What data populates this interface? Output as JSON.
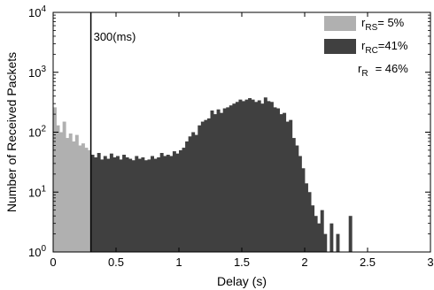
{
  "chart_data": {
    "type": "bar",
    "xlabel": "Delay (s)",
    "ylabel": "Number of Received Packets",
    "xlim": [
      0,
      3
    ],
    "ylim": [
      1,
      10000
    ],
    "yscale": "log",
    "grid": false,
    "legend_position": "top-right",
    "x_ticks": [
      "0",
      "0.5",
      "1",
      "1.5",
      "2",
      "2.5",
      "3"
    ],
    "y_tick_base": "10",
    "y_tick_exponents": [
      "0",
      "1",
      "2",
      "3",
      "4"
    ],
    "bin_width": 0.025,
    "threshold": {
      "x": 0.3,
      "label": "300(ms)"
    },
    "legend": [
      {
        "sub": "RS",
        "value": "= 5%",
        "color": "#b0b0b0"
      },
      {
        "sub": "RC",
        "value": "=41%",
        "color": "#404040"
      },
      {
        "sub": "R",
        "value": "= 46%"
      }
    ],
    "series": [
      {
        "name": "",
        "color": "#b0b0b0",
        "x": [
          0.0,
          0.025,
          0.05,
          0.075,
          0.1,
          0.125,
          0.15,
          0.175,
          0.2,
          0.225,
          0.25,
          0.275
        ],
        "values": [
          260,
          130,
          100,
          150,
          80,
          95,
          70,
          90,
          60,
          65,
          55,
          50
        ]
      },
      {
        "name": "",
        "color": "#404040",
        "x": [
          0.3,
          0.325,
          0.35,
          0.375,
          0.4,
          0.425,
          0.45,
          0.475,
          0.5,
          0.525,
          0.55,
          0.575,
          0.6,
          0.625,
          0.65,
          0.675,
          0.7,
          0.725,
          0.75,
          0.775,
          0.8,
          0.825,
          0.85,
          0.875,
          0.9,
          0.925,
          0.95,
          0.975,
          1.0,
          1.025,
          1.05,
          1.075,
          1.1,
          1.125,
          1.15,
          1.175,
          1.2,
          1.225,
          1.25,
          1.275,
          1.3,
          1.325,
          1.35,
          1.375,
          1.4,
          1.425,
          1.45,
          1.475,
          1.5,
          1.525,
          1.55,
          1.575,
          1.6,
          1.625,
          1.65,
          1.675,
          1.7,
          1.725,
          1.75,
          1.775,
          1.8,
          1.825,
          1.85,
          1.875,
          1.9,
          1.925,
          1.95,
          1.975,
          2.0,
          2.025,
          2.05,
          2.075,
          2.1,
          2.125,
          2.15,
          2.175,
          2.2,
          2.225,
          2.25,
          2.275,
          2.3,
          2.325,
          2.35,
          2.375
        ],
        "values": [
          42,
          38,
          45,
          35,
          40,
          36,
          44,
          38,
          40,
          35,
          42,
          38,
          36,
          34,
          40,
          36,
          38,
          34,
          35,
          40,
          36,
          38,
          45,
          40,
          42,
          40,
          48,
          44,
          50,
          55,
          70,
          85,
          100,
          90,
          130,
          150,
          160,
          170,
          230,
          200,
          240,
          210,
          250,
          260,
          280,
          300,
          320,
          350,
          330,
          350,
          370,
          350,
          320,
          340,
          300,
          380,
          330,
          320,
          260,
          250,
          200,
          210,
          150,
          160,
          80,
          60,
          40,
          25,
          14,
          10,
          6,
          4,
          3,
          5,
          2,
          1,
          3,
          1,
          2,
          1,
          1,
          1,
          4,
          1
        ]
      }
    ]
  }
}
